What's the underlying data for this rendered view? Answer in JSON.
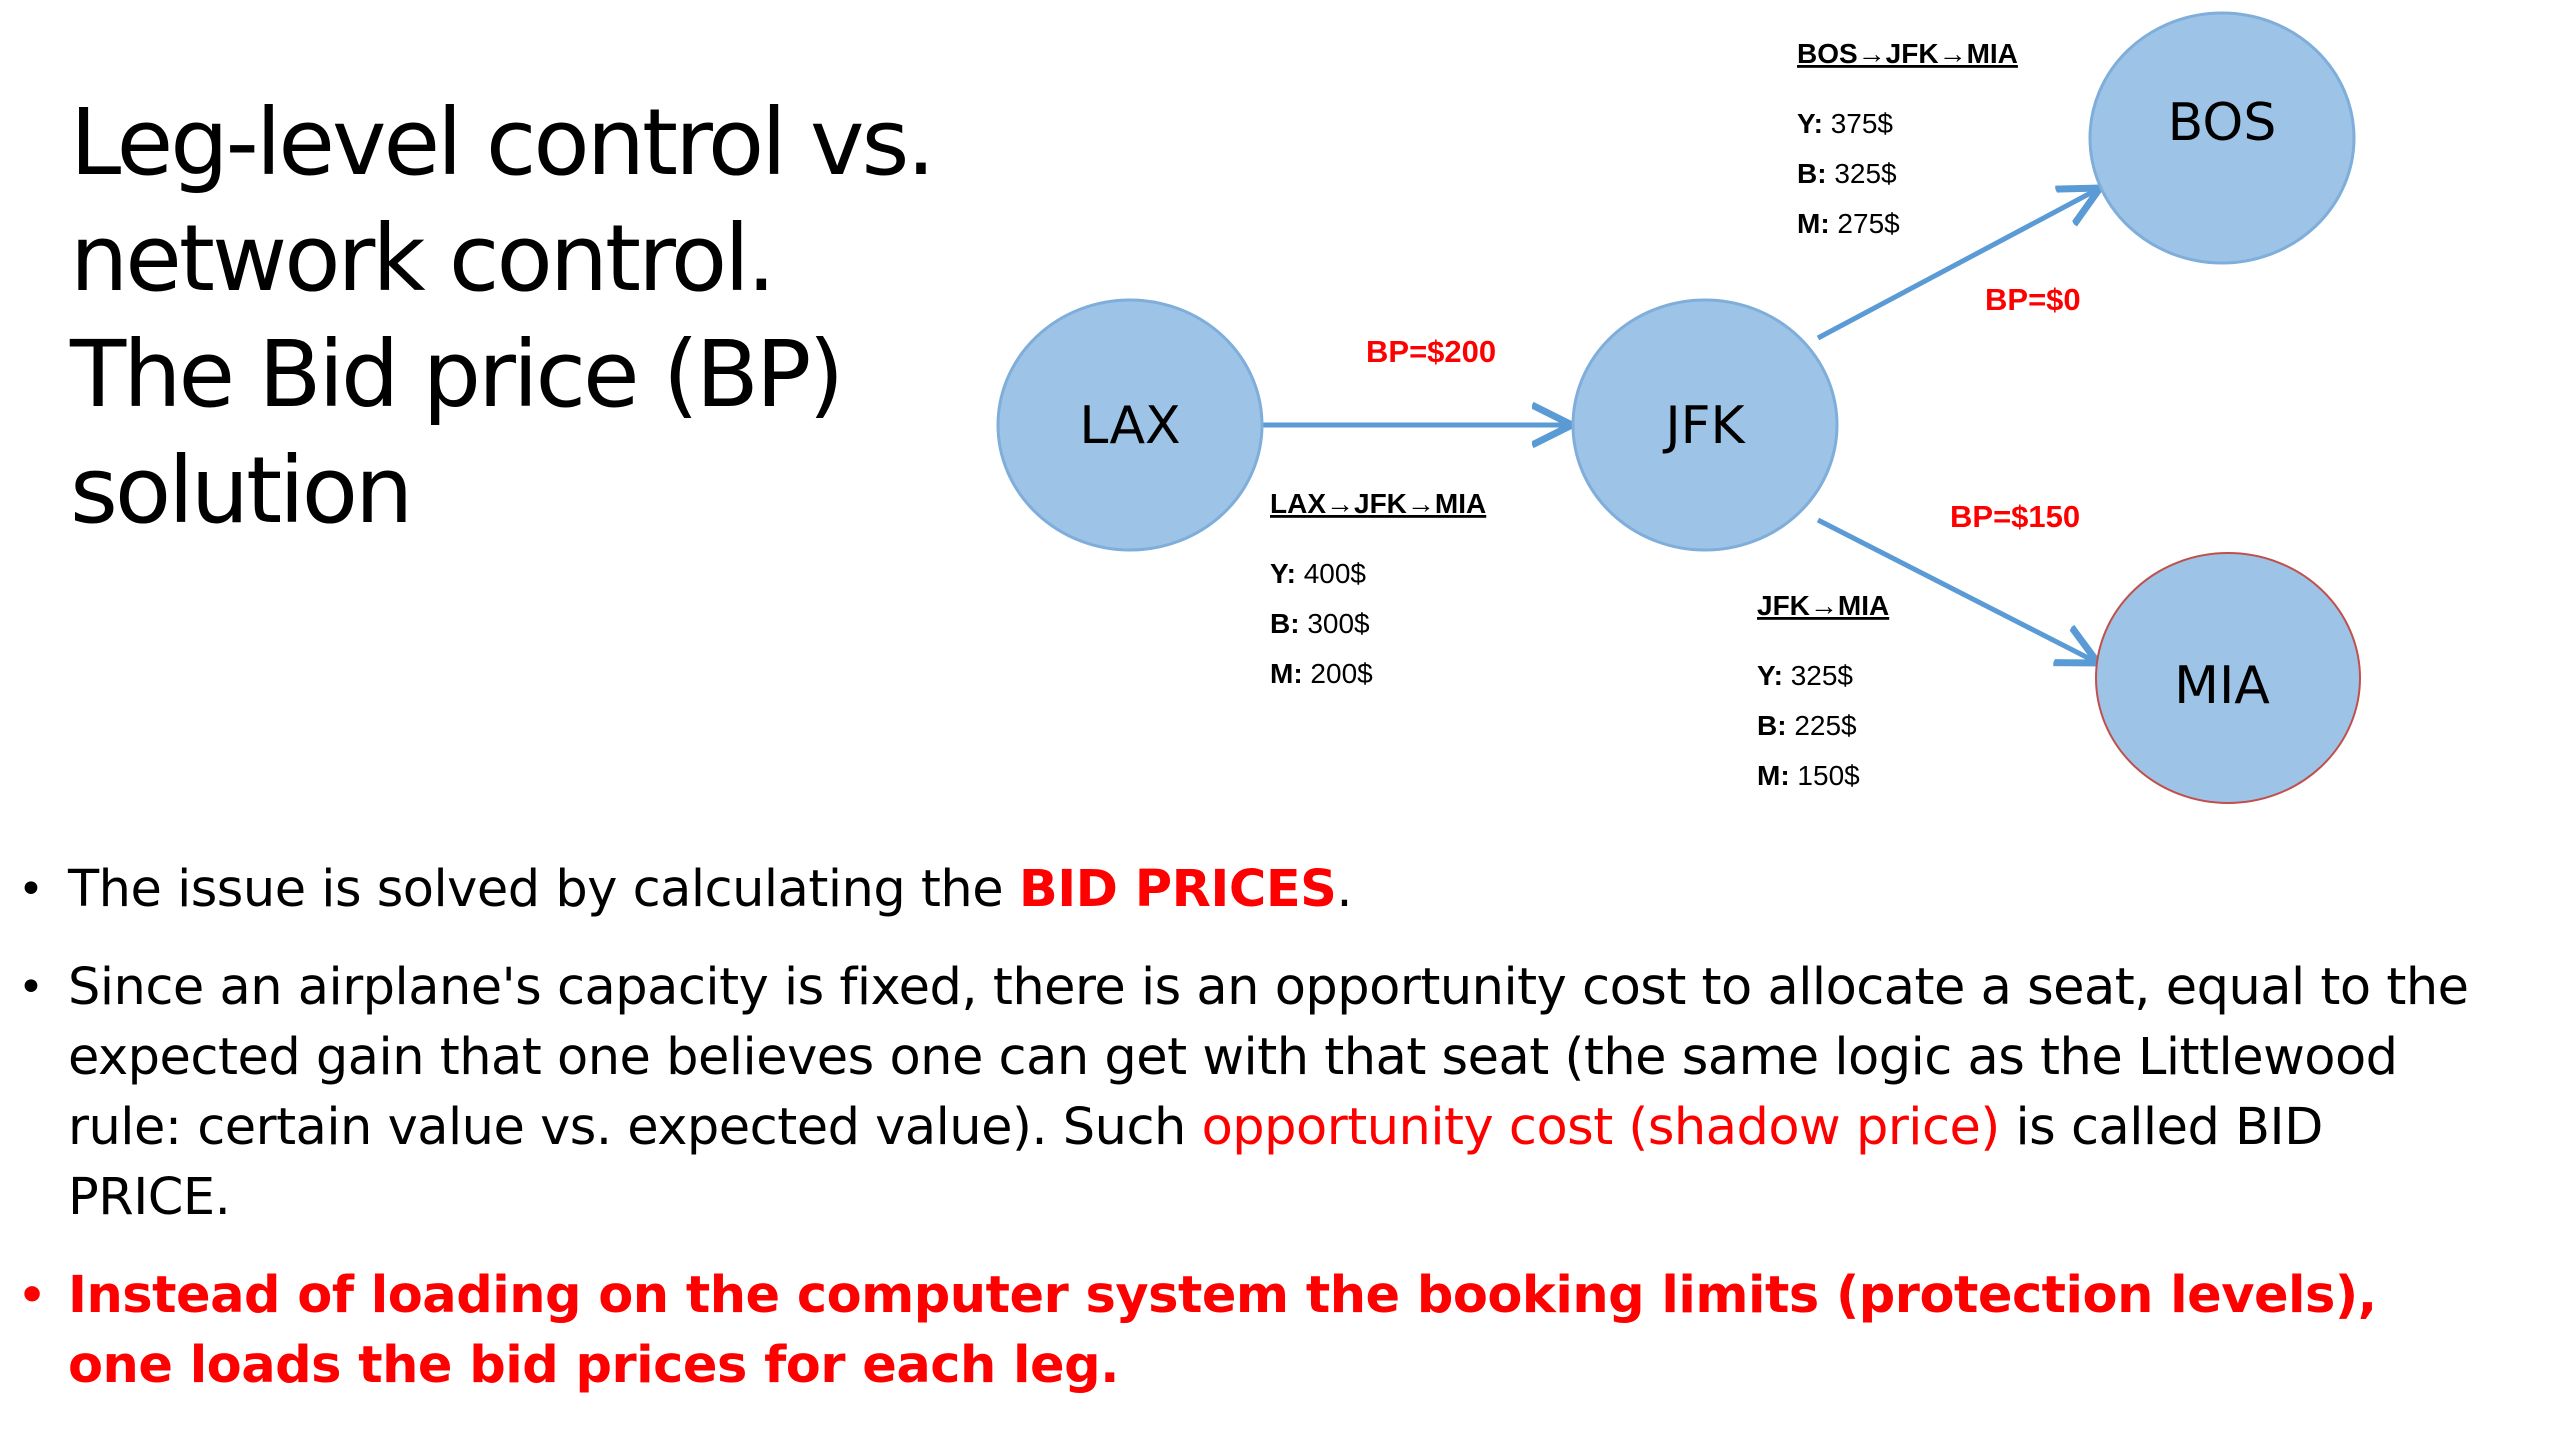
{
  "title": {
    "line1": "Leg-level control vs.",
    "line2": "network control.",
    "line3": "The Bid price (BP)",
    "line4": "solution"
  },
  "nodes": {
    "lax": "LAX",
    "jfk": "JFK",
    "bos": "BOS",
    "mia": "MIA"
  },
  "bid_prices": {
    "lax_jfk": "BP=$200",
    "jfk_bos": "BP=$0",
    "jfk_mia": "BP=$150"
  },
  "routes": {
    "bos_jfk_mia": {
      "heading": "BOS→JFK→MIA",
      "fares": [
        {
          "cls": "Y:",
          "price": " 375$"
        },
        {
          "cls": "B:",
          "price": " 325$"
        },
        {
          "cls": "M:",
          "price": " 275$"
        }
      ]
    },
    "lax_jfk_mia": {
      "heading": "LAX→JFK→MIA",
      "fares": [
        {
          "cls": "Y:",
          "price": " 400$"
        },
        {
          "cls": "B:",
          "price": " 300$"
        },
        {
          "cls": "M:",
          "price": " 200$"
        }
      ]
    },
    "jfk_mia": {
      "heading": "JFK→MIA",
      "fares": [
        {
          "cls": "Y:",
          "price": " 325$"
        },
        {
          "cls": "B:",
          "price": " 225$"
        },
        {
          "cls": "M:",
          "price": " 150$"
        }
      ]
    }
  },
  "bullets": {
    "b1_text": "The issue is solved by calculating the ",
    "b1_highlight": "BID PRICES",
    "b1_end": ".",
    "b2_text": "Since an airplane's capacity is fixed, there is an opportunity cost to allocate a seat, equal to the expected gain that one believes one can get with that seat (the same logic as the Littlewood rule: certain value vs. expected value). Such ",
    "b2_highlight": "opportunity cost (shadow price)",
    "b2_end": " is called BID PRICE.",
    "b3_text": "Instead of loading on the computer system the booking limits (protection levels), one loads the bid prices for each leg."
  },
  "colors": {
    "node_fill": "#9dc3e6",
    "node_stroke": "#7faedb",
    "mia_stroke": "#c0504d",
    "arrow": "#5b9bd5",
    "highlight": "#ff0000"
  }
}
